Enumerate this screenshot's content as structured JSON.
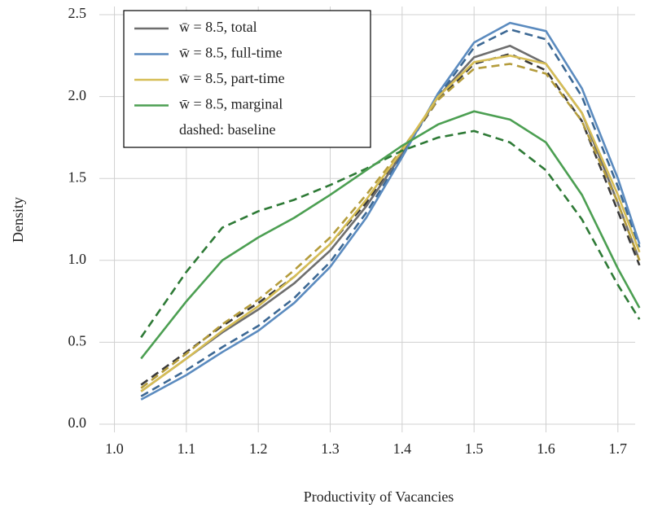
{
  "chart_data": {
    "type": "line",
    "x_label": "Productivity of Vacancies",
    "y_label": "Density",
    "x": [
      1.037,
      1.1,
      1.15,
      1.2,
      1.25,
      1.3,
      1.35,
      1.4,
      1.45,
      1.5,
      1.55,
      1.6,
      1.65,
      1.7,
      1.73
    ],
    "series": [
      {
        "name": "w̄ = 8.5, total",
        "color": "#6e6e6e",
        "baseline_color": "#3a3a3a",
        "values": [
          0.2,
          0.4,
          0.56,
          0.7,
          0.86,
          1.06,
          1.33,
          1.65,
          2.0,
          2.24,
          2.31,
          2.2,
          1.9,
          1.35,
          1.0
        ],
        "baseline": [
          0.24,
          0.44,
          0.6,
          0.74,
          0.9,
          1.1,
          1.35,
          1.66,
          1.98,
          2.2,
          2.26,
          2.16,
          1.85,
          1.3,
          0.97
        ]
      },
      {
        "name": "w̄ = 8.5, full-time",
        "color": "#5b8bbf",
        "baseline_color": "#3c6894",
        "values": [
          0.15,
          0.3,
          0.44,
          0.57,
          0.74,
          0.96,
          1.26,
          1.63,
          2.02,
          2.33,
          2.45,
          2.4,
          2.05,
          1.5,
          1.1
        ],
        "baseline": [
          0.17,
          0.33,
          0.47,
          0.6,
          0.77,
          0.99,
          1.29,
          1.64,
          2.0,
          2.3,
          2.41,
          2.35,
          2.0,
          1.45,
          1.08
        ]
      },
      {
        "name": "w̄ = 8.5, part-time",
        "color": "#d6bd55",
        "baseline_color": "#b49c3c",
        "values": [
          0.2,
          0.4,
          0.57,
          0.72,
          0.9,
          1.1,
          1.37,
          1.67,
          2.0,
          2.21,
          2.25,
          2.2,
          1.9,
          1.4,
          1.05
        ],
        "baseline": [
          0.22,
          0.43,
          0.61,
          0.76,
          0.94,
          1.14,
          1.4,
          1.68,
          1.98,
          2.17,
          2.2,
          2.14,
          1.85,
          1.35,
          1.0
        ]
      },
      {
        "name": "w̄ = 8.5, marginal",
        "color": "#4c9f52",
        "baseline_color": "#2e7a36",
        "values": [
          0.4,
          0.75,
          1.0,
          1.14,
          1.26,
          1.4,
          1.55,
          1.7,
          1.83,
          1.91,
          1.86,
          1.72,
          1.4,
          0.95,
          0.71
        ],
        "baseline": [
          0.53,
          0.93,
          1.2,
          1.3,
          1.37,
          1.46,
          1.56,
          1.67,
          1.75,
          1.79,
          1.72,
          1.55,
          1.25,
          0.85,
          0.64
        ]
      }
    ],
    "legend_note": "dashed: baseline",
    "legend": "upper left",
    "grid": true,
    "xlim": [
      0.979,
      1.724
    ],
    "xticks": [
      {
        "value": 1.0,
        "label": "1.0"
      },
      1.1,
      1.2,
      1.3,
      1.4,
      1.5,
      1.6,
      1.7
    ],
    "ylim": [
      -0.05,
      2.55
    ],
    "yticks": [
      {
        "value": 0.0,
        "label": "0.0"
      },
      0.5,
      {
        "value": 1.0,
        "label": "1.0"
      },
      1.5,
      {
        "value": 2.0,
        "label": "2.0"
      },
      2.5
    ]
  }
}
